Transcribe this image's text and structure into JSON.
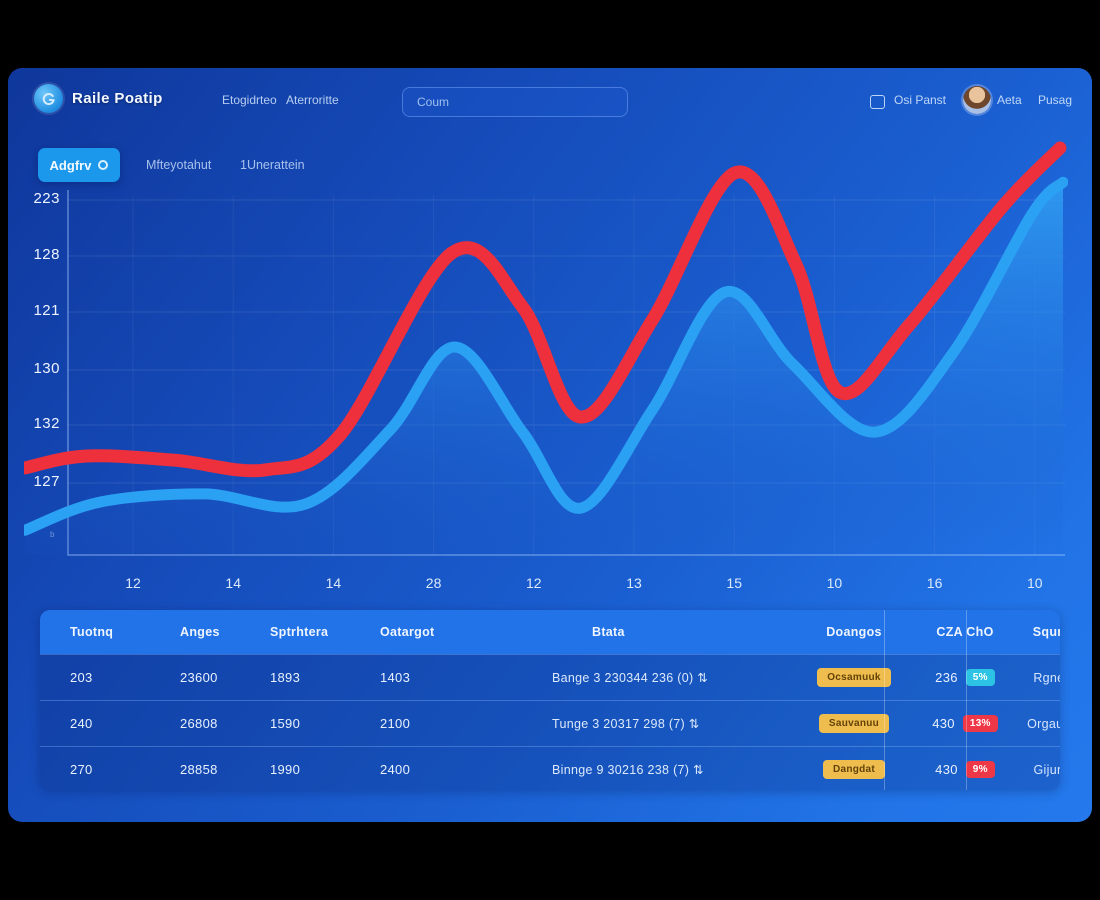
{
  "window": {
    "background": "#000000",
    "panel_accent": "#2173e6"
  },
  "header": {
    "logo_text": "Raile Poatip",
    "nav": [
      {
        "label": "Etogidrteo"
      },
      {
        "label": "Aterroritte"
      }
    ],
    "search_placeholder": "Coum",
    "panel_label": "Osi Panst",
    "user_name": "Aeta",
    "user_menu": "Pusag"
  },
  "filters": {
    "active": "Adgfrv",
    "tabs": [
      "Mfteyotahut",
      "1Unerattein"
    ]
  },
  "chart_data": {
    "type": "line",
    "title": "",
    "xlabel": "",
    "ylabel": "",
    "x_ticks": [
      "12",
      "14",
      "14",
      "28",
      "12",
      "13",
      "15",
      "10",
      "16",
      "10"
    ],
    "y_ticks": [
      "223",
      "128",
      "121",
      "130",
      "132",
      "127"
    ],
    "baseline_label": "b",
    "ylim": [
      0,
      100
    ],
    "grid": true,
    "legend": "none",
    "series": [
      {
        "name": "blue-series",
        "color": "#2ba1f4",
        "stroke_width": 11,
        "area": true,
        "area_top_color": "rgba(47,155,240,0.95)",
        "area_bottom_color": "rgba(27,92,200,0.05)",
        "points": [
          [
            -0.043,
            6.1
          ],
          [
            0.032,
            13.0
          ],
          [
            0.137,
            15.0
          ],
          [
            0.238,
            12.5
          ],
          [
            0.323,
            30.7
          ],
          [
            0.388,
            51.1
          ],
          [
            0.456,
            30.2
          ],
          [
            0.514,
            11.5
          ],
          [
            0.586,
            35.6
          ],
          [
            0.659,
            64.6
          ],
          [
            0.727,
            46.9
          ],
          [
            0.809,
            30.2
          ],
          [
            0.887,
            49.4
          ],
          [
            0.967,
            83.8
          ],
          [
            0.998,
            91.6
          ]
        ]
      },
      {
        "name": "red-series",
        "color": "#ee2f3c",
        "stroke_width": 13,
        "area": false,
        "points": [
          [
            -0.043,
            21.4
          ],
          [
            0.017,
            24.3
          ],
          [
            0.107,
            23.3
          ],
          [
            0.198,
            20.9
          ],
          [
            0.273,
            29.5
          ],
          [
            0.385,
            74.2
          ],
          [
            0.456,
            60.9
          ],
          [
            0.514,
            33.9
          ],
          [
            0.586,
            57.7
          ],
          [
            0.669,
            93.9
          ],
          [
            0.73,
            71.5
          ],
          [
            0.774,
            40.0
          ],
          [
            0.843,
            56.3
          ],
          [
            0.937,
            85.5
          ],
          [
            0.995,
            100
          ]
        ]
      }
    ]
  },
  "table": {
    "columns": [
      "Tuotnq",
      "Anges",
      "Sptrhtera",
      "Oatargot",
      "Btata",
      "Doangos",
      "CZA ChO",
      "Squnq"
    ],
    "badge_colors": {
      "cyan": "#2cc3e4",
      "red": "#ee3848"
    },
    "rows": [
      {
        "tuning": "203",
        "anges": "23600",
        "sptr": "1893",
        "damage": "1403",
        "dates": "Bange 3 230344 236 (0) ⇅",
        "badge": "Ocsamuuk",
        "value": "236",
        "trend": "5%",
        "trend_color": "cyan",
        "action": "Rgne ›"
      },
      {
        "tuning": "240",
        "anges": "26808",
        "sptr": "1590",
        "damage": "2100",
        "dates": "Tunge 3 20317 298 (7) ⇅",
        "badge": "Sauvanuu",
        "value": "430",
        "trend": "13%",
        "trend_color": "red",
        "action": "Orgaun ›"
      },
      {
        "tuning": "270",
        "anges": "28858",
        "sptr": "1990",
        "damage": "2400",
        "dates": "Binnge 9 30216 238 (7) ⇅",
        "badge": "Dangdat",
        "value": "430",
        "trend": "9%",
        "trend_color": "red",
        "action": "Gijun ›"
      }
    ]
  }
}
